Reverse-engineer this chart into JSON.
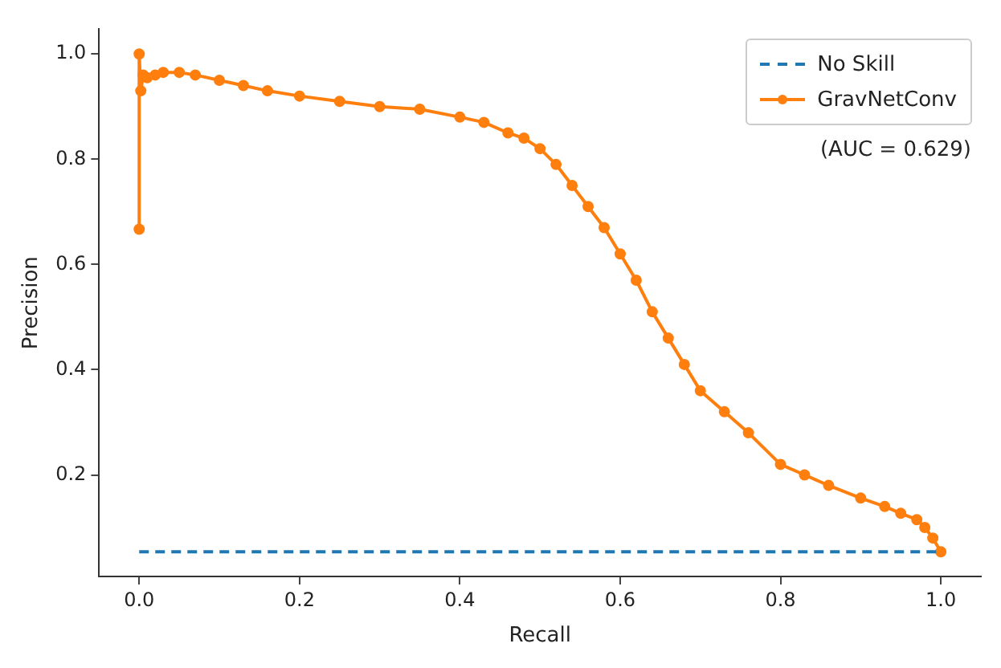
{
  "chart_data": {
    "type": "line",
    "xlabel": "Recall",
    "ylabel": "Precision",
    "xlim": [
      -0.05,
      1.05
    ],
    "ylim": [
      0.007,
      1.047
    ],
    "xticks": [
      {
        "value": 0,
        "label": "0.0"
      },
      0.2,
      0.4,
      0.6,
      0.8,
      {
        "value": 1,
        "label": "1.0"
      }
    ],
    "yticks": [
      0.2,
      0.4,
      0.6,
      0.8,
      {
        "value": 1,
        "label": "1.0"
      }
    ],
    "grid": false,
    "legend": "top right",
    "annotations": [
      "(AUC = 0.629)"
    ],
    "series": [
      {
        "name": "No Skill",
        "color": "#1f77b4",
        "line_style": "dashed",
        "marker": "none",
        "x": [
          0,
          1
        ],
        "values": [
          0.054,
          0.054
        ]
      },
      {
        "name": "GravNetConv",
        "color": "#ff7f0e",
        "line_style": "solid",
        "marker": "circle",
        "x": [
          0,
          0,
          0.002,
          0.005,
          0.01,
          0.02,
          0.03,
          0.05,
          0.07,
          0.1,
          0.13,
          0.16,
          0.2,
          0.25,
          0.3,
          0.35,
          0.4,
          0.43,
          0.46,
          0.48,
          0.5,
          0.52,
          0.54,
          0.56,
          0.58,
          0.6,
          0.62,
          0.64,
          0.66,
          0.68,
          0.7,
          0.73,
          0.76,
          0.8,
          0.83,
          0.86,
          0.9,
          0.93,
          0.95,
          0.97,
          0.98,
          0.99,
          1.0
        ],
        "values": [
          0.667,
          1.0,
          0.93,
          0.96,
          0.955,
          0.96,
          0.965,
          0.965,
          0.96,
          0.95,
          0.94,
          0.93,
          0.92,
          0.91,
          0.9,
          0.895,
          0.88,
          0.87,
          0.85,
          0.84,
          0.82,
          0.79,
          0.75,
          0.71,
          0.67,
          0.62,
          0.57,
          0.51,
          0.46,
          0.41,
          0.36,
          0.32,
          0.28,
          0.22,
          0.2,
          0.18,
          0.156,
          0.14,
          0.127,
          0.115,
          0.1,
          0.08,
          0.054
        ]
      }
    ]
  }
}
